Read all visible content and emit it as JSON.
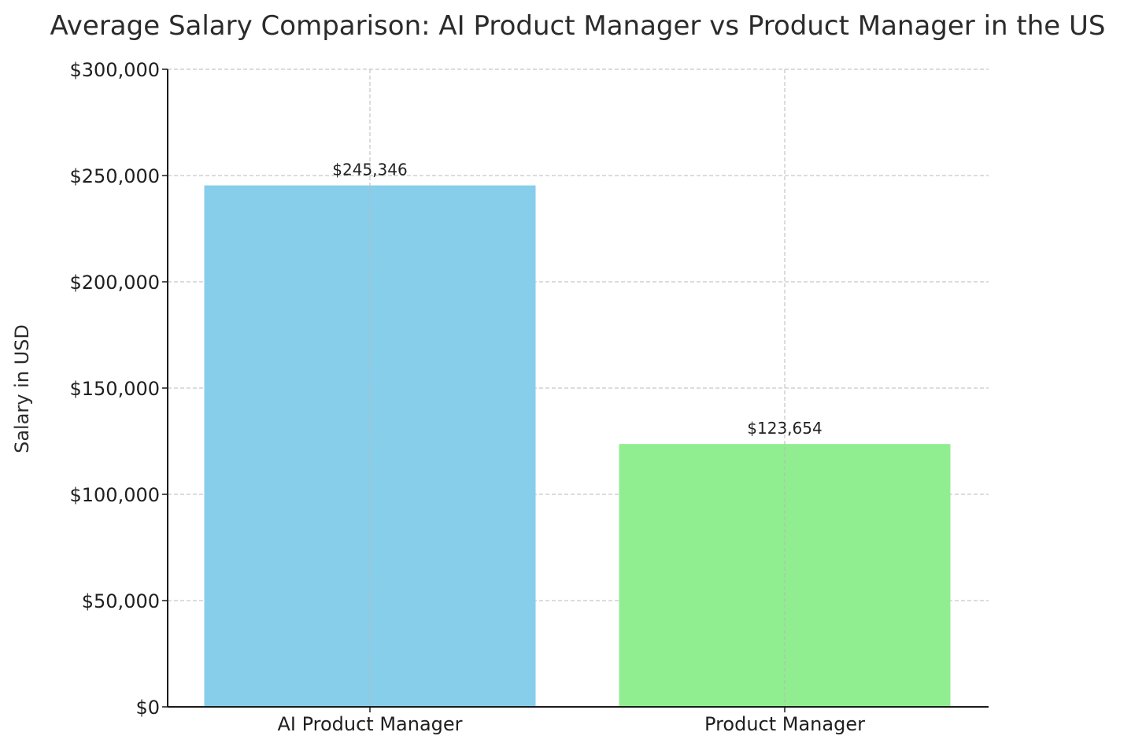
{
  "chart_data": {
    "type": "bar",
    "title": "Average Salary Comparison: AI Product Manager vs Product Manager in the US",
    "xlabel": "",
    "ylabel": "Salary in USD",
    "categories": [
      "AI Product Manager",
      "Product Manager"
    ],
    "values": [
      245346,
      123654
    ],
    "value_labels": [
      "$245,346",
      "$123,654"
    ],
    "colors": [
      "#87CEEB",
      "#90EE90"
    ],
    "ylim": [
      0,
      300000
    ],
    "yticks": [
      0,
      50000,
      100000,
      150000,
      200000,
      250000,
      300000
    ],
    "ytick_labels": [
      "$0",
      "$50,000",
      "$100,000",
      "$150,000",
      "$200,000",
      "$250,000",
      "$300,000"
    ],
    "grid": true,
    "grid_style": "dashed"
  }
}
